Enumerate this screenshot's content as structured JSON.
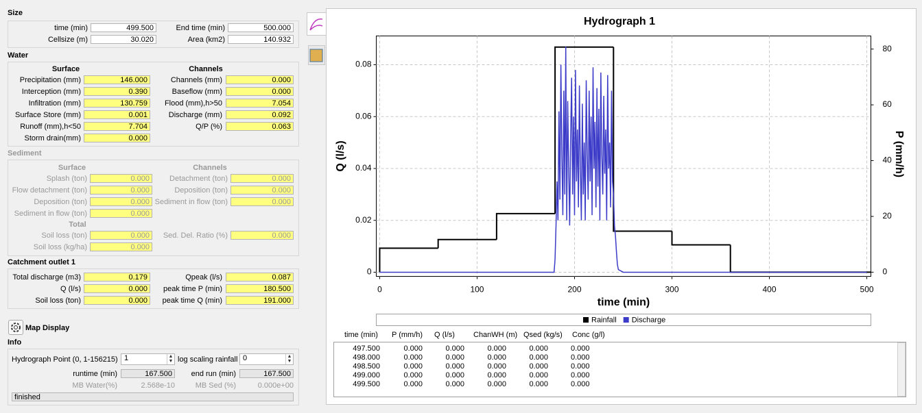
{
  "size": {
    "title": "Size",
    "left": [
      {
        "label": "time (min)",
        "value": "499.500"
      },
      {
        "label": "Cellsize (m)",
        "value": "30.020"
      }
    ],
    "right": [
      {
        "label": "End time (min)",
        "value": "500.000"
      },
      {
        "label": "Area (km2)",
        "value": "140.932"
      }
    ]
  },
  "water": {
    "title": "Water",
    "surface_heading": "Surface",
    "channels_heading": "Channels",
    "surface": [
      {
        "label": "Precipitation (mm)",
        "value": "146.000"
      },
      {
        "label": "Interception (mm)",
        "value": "0.390"
      },
      {
        "label": "Infiltration (mm)",
        "value": "130.759"
      },
      {
        "label": "Surface Store (mm)",
        "value": "0.001"
      },
      {
        "label": "Runoff (mm),h<50",
        "value": "7.704"
      },
      {
        "label": "Storm drain(mm)",
        "value": "0.000"
      }
    ],
    "channels": [
      {
        "label": "Channels (mm)",
        "value": "0.000"
      },
      {
        "label": "Baseflow (mm)",
        "value": "0.000"
      },
      {
        "label": "Flood (mm),h>50",
        "value": "7.054"
      },
      {
        "label": "Discharge (mm)",
        "value": "0.092"
      },
      {
        "label": "Q/P (%)",
        "value": "0.063"
      }
    ]
  },
  "sediment": {
    "title": "Sediment",
    "surface_heading": "Surface",
    "channels_heading": "Channels",
    "surface": [
      {
        "label": "Splash (ton)",
        "value": "0.000"
      },
      {
        "label": "Flow detachment (ton)",
        "value": "0.000"
      },
      {
        "label": "Deposition (ton)",
        "value": "0.000"
      },
      {
        "label": "Sediment in flow (ton)",
        "value": "0.000"
      }
    ],
    "channels": [
      {
        "label": "Detachment (ton)",
        "value": "0.000"
      },
      {
        "label": "Deposition (ton)",
        "value": "0.000"
      },
      {
        "label": "Sediment in flow (ton)",
        "value": "0.000"
      }
    ],
    "total_heading": "Total",
    "total": [
      {
        "label": "Soil loss (ton)",
        "value": "0.000"
      },
      {
        "label": "Soil loss (kg/ha)",
        "value": "0.000"
      }
    ],
    "total_right": [
      {
        "label": "Sed. Del. Ratio  (%)",
        "value": "0.000"
      }
    ]
  },
  "outlet": {
    "title": "Catchment outlet 1",
    "left": [
      {
        "label": "Total discharge (m3)",
        "value": "0.179"
      },
      {
        "label": "Q (l/s)",
        "value": "0.000"
      },
      {
        "label": "Soil loss (ton)",
        "value": "0.000"
      }
    ],
    "right": [
      {
        "label": "Qpeak (l/s)",
        "value": "0.087"
      },
      {
        "label": "peak time P (min)",
        "value": "180.500"
      },
      {
        "label": "peak time Q (min)",
        "value": "191.000"
      }
    ]
  },
  "map_display": {
    "label": "Map Display"
  },
  "info": {
    "title": "Info",
    "hydrograph_point": {
      "label": "Hydrograph Point (0, 1-156215)",
      "value": "1"
    },
    "log_scaling": {
      "label": "log scaling rainfall",
      "value": "0"
    },
    "runtime": {
      "label": "runtime (min)",
      "value": "167.500"
    },
    "end_run": {
      "label": "end run (min)",
      "value": "167.500"
    },
    "mb_water": {
      "label": "MB Water(%)",
      "value": "2.568e-10"
    },
    "mb_sed": {
      "label": "MB Sed (%)",
      "value": "0.000e+00"
    },
    "status": "finished"
  },
  "chart_data": {
    "type": "line",
    "title": "Hydrograph 1",
    "xlabel": "time (min)",
    "ylabel": "Q (l/s)",
    "y2label": "P (mm/h)",
    "xlim": [
      -3.5,
      504.2
    ],
    "ylim": [
      -0.0016,
      0.0911
    ],
    "y2lim": [
      -1.5,
      84.7
    ],
    "xticks": [
      0,
      100,
      200,
      300,
      400,
      500
    ],
    "yticks": [
      0,
      0.02,
      0.04,
      0.06,
      0.08
    ],
    "y2ticks": [
      0,
      20,
      40,
      60,
      80
    ],
    "grid": true,
    "series": [
      {
        "name": "Rainfall",
        "color": "#000000",
        "axis": "y2",
        "step": "post",
        "x": [
          0,
          60,
          120,
          180,
          240,
          300,
          360
        ],
        "values": [
          8.6,
          11.7,
          21,
          80.7,
          14.7,
          9.8,
          0
        ]
      },
      {
        "name": "Discharge",
        "color": "#3c3cc8",
        "x": [
          0,
          179,
          180,
          181,
          182,
          183,
          184,
          185,
          186,
          187,
          188,
          189,
          190,
          191,
          192,
          193,
          194,
          195,
          196,
          197,
          198,
          199,
          200,
          201,
          202,
          203,
          204,
          205,
          206,
          207,
          208,
          209,
          210,
          211,
          212,
          213,
          214,
          215,
          216,
          217,
          218,
          219,
          220,
          221,
          222,
          223,
          224,
          225,
          226,
          227,
          228,
          229,
          230,
          231,
          232,
          233,
          234,
          235,
          236,
          237,
          238,
          239,
          240,
          241,
          242,
          243,
          244,
          245,
          250,
          500
        ],
        "values": [
          0,
          0,
          0.005,
          0.018,
          0.035,
          0.02,
          0.062,
          0.028,
          0.08,
          0.045,
          0.022,
          0.07,
          0.03,
          0.087,
          0.02,
          0.066,
          0.04,
          0.018,
          0.052,
          0.075,
          0.03,
          0.06,
          0.022,
          0.078,
          0.035,
          0.055,
          0.025,
          0.072,
          0.04,
          0.02,
          0.065,
          0.03,
          0.05,
          0.02,
          0.074,
          0.045,
          0.028,
          0.07,
          0.035,
          0.06,
          0.022,
          0.079,
          0.04,
          0.058,
          0.025,
          0.071,
          0.033,
          0.063,
          0.02,
          0.077,
          0.045,
          0.03,
          0.068,
          0.038,
          0.055,
          0.02,
          0.076,
          0.04,
          0.05,
          0.025,
          0.07,
          0.035,
          0.03,
          0.018,
          0.014,
          0.008,
          0.003,
          0.001,
          0,
          0
        ]
      }
    ]
  },
  "table": {
    "columns": [
      "time (min)",
      "P (mm/h)",
      "Q (l/s)",
      "ChanWH (m)",
      "Qsed (kg/s)",
      "Conc (g/l)"
    ],
    "rows": [
      [
        "497.500",
        "0.000",
        "0.000",
        "0.000",
        "0.000",
        "0.000"
      ],
      [
        "498.000",
        "0.000",
        "0.000",
        "0.000",
        "0.000",
        "0.000"
      ],
      [
        "498.500",
        "0.000",
        "0.000",
        "0.000",
        "0.000",
        "0.000"
      ],
      [
        "499.000",
        "0.000",
        "0.000",
        "0.000",
        "0.000",
        "0.000"
      ],
      [
        "499.500",
        "0.000",
        "0.000",
        "0.000",
        "0.000",
        "0.000"
      ]
    ]
  }
}
